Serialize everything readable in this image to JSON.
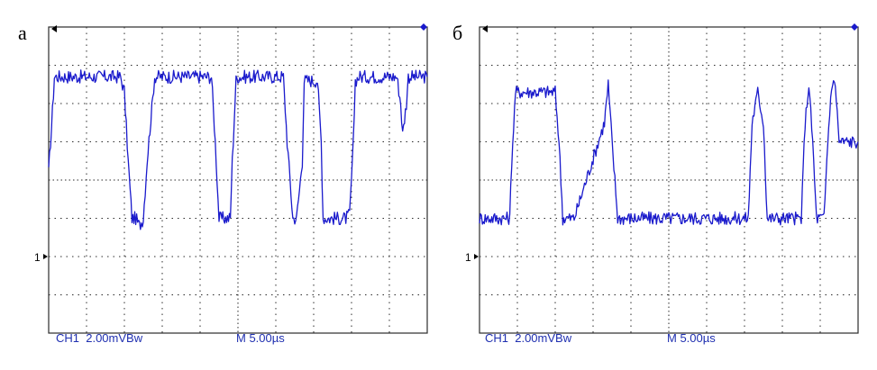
{
  "colors": {
    "trace": "#1a1acc",
    "grid": "#2b2b2b",
    "text": "#1f2fb0"
  },
  "panels": [
    {
      "label": "а",
      "channel_readout": "CH1  2.00mVBw",
      "timebase_readout": "M 5.00µs"
    },
    {
      "label": "б",
      "channel_readout": "CH1  2.00mVBw",
      "timebase_readout": "M 5.00µs"
    }
  ],
  "markers": {
    "ground": "1"
  },
  "chart_data": [
    {
      "type": "line",
      "title": "",
      "xlabel": "",
      "ylabel": "",
      "xlim": [
        0,
        10
      ],
      "ylim": [
        -4,
        4
      ],
      "grid": true,
      "series": [
        {
          "x": [
            0,
            0.1,
            0.15,
            0.3,
            1.9,
            2.0,
            2.1,
            2.2,
            2.3,
            2.4,
            2.5,
            2.6,
            2.8,
            2.9,
            3.0,
            3.05,
            4.3,
            4.4,
            4.5,
            4.55,
            4.8,
            4.85,
            4.95,
            5.0,
            6.2,
            6.3,
            6.45,
            6.55,
            6.7,
            6.75,
            7.0,
            7.1,
            7.2,
            7.25,
            7.85,
            7.95,
            8.05,
            8.1,
            8.2,
            8.3,
            8.45,
            8.5,
            9.2,
            9.3,
            9.35,
            9.45,
            9.5,
            10.0
          ],
          "y": [
            0.2,
            1.8,
            2.7,
            2.7,
            2.7,
            2.3,
            0.5,
            -1.0,
            -1.0,
            -1.2,
            -1.0,
            0.5,
            2.7,
            2.7,
            2.7,
            2.7,
            2.7,
            1.0,
            -1.0,
            -1.0,
            -1.0,
            0.5,
            2.6,
            2.7,
            2.7,
            1.0,
            -1.0,
            -1.0,
            0.5,
            2.6,
            2.6,
            2.6,
            1.0,
            -1.0,
            -1.0,
            -0.9,
            1.0,
            2.6,
            2.7,
            2.7,
            2.7,
            2.7,
            2.7,
            2.0,
            1.2,
            2.0,
            2.7,
            2.7
          ]
        }
      ]
    },
    {
      "type": "line",
      "title": "",
      "xlabel": "",
      "ylabel": "",
      "xlim": [
        0,
        10
      ],
      "ylim": [
        -4,
        4
      ],
      "grid": true,
      "series": [
        {
          "x": [
            0,
            0.8,
            0.85,
            0.95,
            1.05,
            2.0,
            2.1,
            2.2,
            2.5,
            3.3,
            3.4,
            3.5,
            3.65,
            3.8,
            7.1,
            7.2,
            7.35,
            7.5,
            7.6,
            7.7,
            8.5,
            8.6,
            8.7,
            8.8,
            8.9,
            9.1,
            9.2,
            9.3,
            9.4,
            9.5,
            10.0
          ],
          "y": [
            -1.0,
            -1.0,
            0.5,
            2.3,
            2.3,
            2.3,
            1.0,
            -1.0,
            -1.0,
            1.5,
            2.5,
            1.0,
            -1.0,
            -1.0,
            -1.0,
            1.5,
            2.3,
            1.5,
            -1.0,
            -1.0,
            -1.0,
            1.5,
            2.5,
            1.0,
            -1.0,
            -1.0,
            1.0,
            2.5,
            2.5,
            1.0,
            1.0
          ]
        }
      ]
    }
  ]
}
